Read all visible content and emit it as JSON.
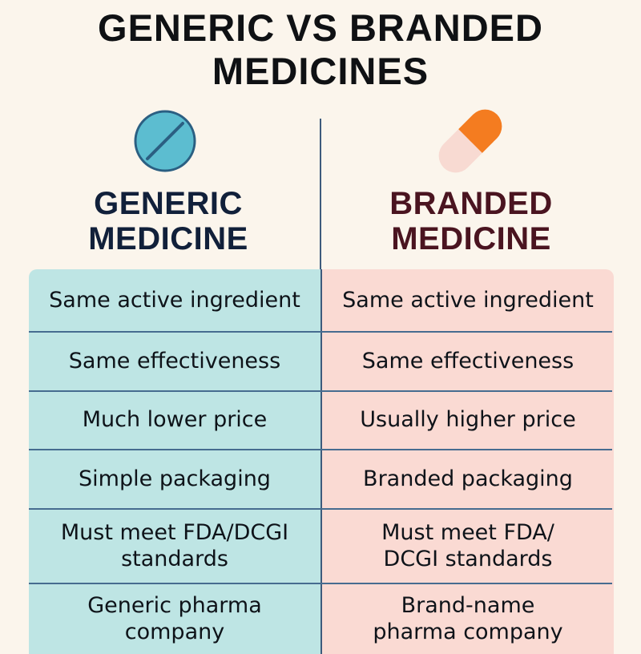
{
  "title": [
    "GENERIC VS BRANDED",
    "MEDICINES"
  ],
  "columns": {
    "generic": {
      "heading": [
        "GENERIC",
        "MEDICINE"
      ],
      "icon": "round-tablet-icon",
      "color": "#5cbdd0"
    },
    "branded": {
      "heading": [
        "BRANDED",
        "MEDICINE"
      ],
      "icon": "capsule-icon",
      "color": "#f47c20"
    }
  },
  "rows": [
    {
      "generic": [
        "Same active ingredient"
      ],
      "branded": [
        "Same active ingredient"
      ]
    },
    {
      "generic": [
        "Same effectiveness"
      ],
      "branded": [
        "Same effectiveness"
      ]
    },
    {
      "generic": [
        "Much lower price"
      ],
      "branded": [
        "Usually higher price"
      ]
    },
    {
      "generic": [
        "Simple packaging"
      ],
      "branded": [
        "Branded packaging"
      ]
    },
    {
      "generic": [
        "Must meet FDA/DCGI",
        "standards"
      ],
      "branded": [
        "Must meet FDA/",
        "DCGI standards"
      ]
    },
    {
      "generic": [
        "Generic pharma",
        "company"
      ],
      "branded": [
        "Brand-name",
        "pharma company"
      ]
    }
  ],
  "colors": {
    "background": "#fbf5ec",
    "generic_panel": "#bee5e4",
    "branded_panel": "#fadad3",
    "branded_heading": "#4a1420",
    "generic_heading": "#11203a"
  }
}
